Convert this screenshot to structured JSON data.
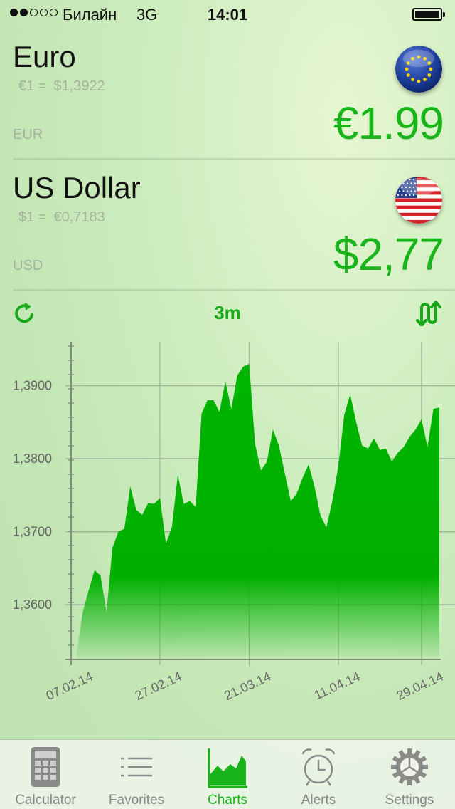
{
  "status_bar": {
    "carrier": "Билайн",
    "network": "3G",
    "time": "14:01",
    "signal_bars_filled": 2,
    "signal_bars_total": 5
  },
  "source_currency": {
    "name": "Euro",
    "rate_lhs": "€1 =",
    "rate_rhs": "$1,3922",
    "code": "EUR",
    "amount": "€1.99",
    "flag_icon": "eu-flag-icon"
  },
  "target_currency": {
    "name": "US Dollar",
    "rate_lhs": "$1 =",
    "rate_rhs": "€0,7183",
    "code": "USD",
    "amount": "$2,77",
    "flag_icon": "us-flag-icon"
  },
  "chart_toolbar": {
    "period": "3m",
    "refresh_icon": "refresh-icon",
    "swap_icon": "swap-icon"
  },
  "colors": {
    "accent_green": "#19b419",
    "chart_fill": "#00b000",
    "muted_text": "#a6b3a0"
  },
  "chart_data": {
    "type": "area",
    "title": "",
    "xlabel": "",
    "ylabel": "",
    "ylim": [
      1.3525,
      1.396
    ],
    "y_ticks": [
      {
        "value": 1.39,
        "label": "1,3900"
      },
      {
        "value": 1.38,
        "label": "1,3800"
      },
      {
        "value": 1.37,
        "label": "1,3700"
      },
      {
        "value": 1.36,
        "label": "1,3600"
      }
    ],
    "x_tick_labels": [
      "07.02.14",
      "27.02.14",
      "21.03.14",
      "11.04.14",
      "29.04.14"
    ],
    "grid": true,
    "series": [
      {
        "values": [
          1.3534,
          1.359,
          1.362,
          1.3647,
          1.364,
          1.359,
          1.3678,
          1.37,
          1.3704,
          1.3762,
          1.373,
          1.3723,
          1.3739,
          1.3738,
          1.3746,
          1.3684,
          1.3706,
          1.3778,
          1.3738,
          1.3742,
          1.3734,
          1.3862,
          1.388,
          1.388,
          1.3864,
          1.3906,
          1.3868,
          1.3914,
          1.3926,
          1.393,
          1.382,
          1.3784,
          1.3796,
          1.384,
          1.3818,
          1.378,
          1.3742,
          1.3752,
          1.3774,
          1.3792,
          1.3762,
          1.3722,
          1.3706,
          1.3742,
          1.379,
          1.386,
          1.3888,
          1.385,
          1.3818,
          1.3814,
          1.3828,
          1.3812,
          1.3814,
          1.3796,
          1.3808,
          1.3816,
          1.383,
          1.384,
          1.3854,
          1.3816,
          1.3868,
          1.387
        ]
      }
    ]
  },
  "tabbar": {
    "tabs": [
      {
        "label": "Calculator",
        "icon": "calculator-icon",
        "active": false
      },
      {
        "label": "Favorites",
        "icon": "list-icon",
        "active": false
      },
      {
        "label": "Charts",
        "icon": "chart-icon",
        "active": true
      },
      {
        "label": "Alerts",
        "icon": "alarm-clock-icon",
        "active": false
      },
      {
        "label": "Settings",
        "icon": "gear-icon",
        "active": false
      }
    ]
  }
}
